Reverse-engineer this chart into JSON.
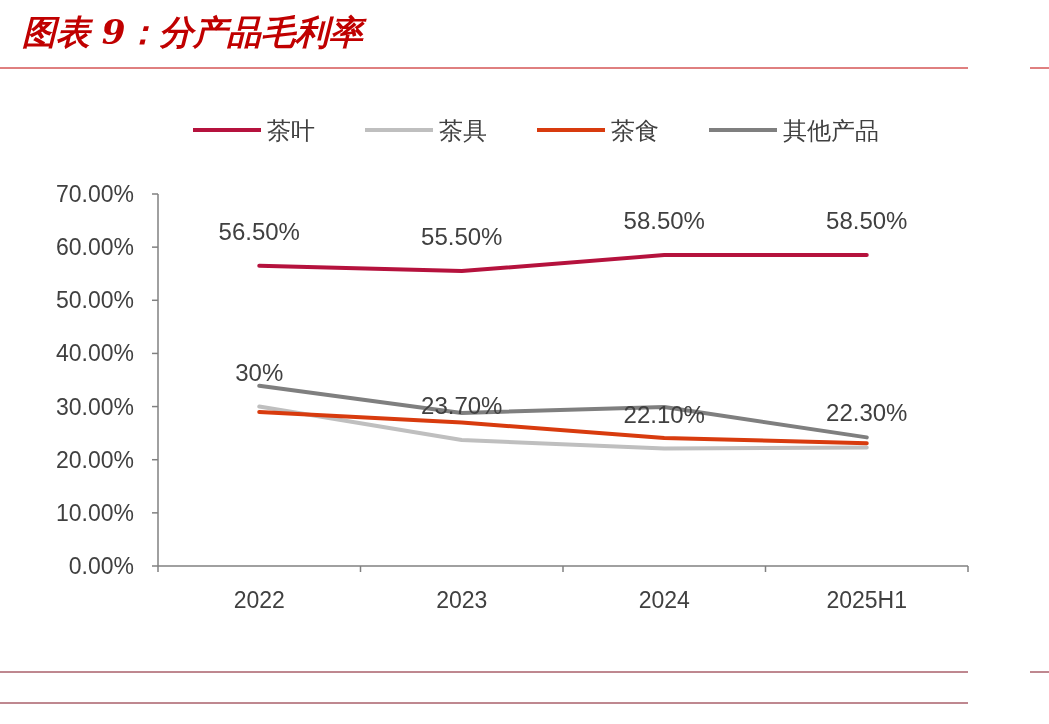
{
  "chart_data": {
    "type": "line",
    "title": "图表 9：分产品毛利率",
    "categories": [
      "2022",
      "2023",
      "2024",
      "2025H1"
    ],
    "series": [
      {
        "name": "茶叶",
        "color": "#b5123d",
        "values": [
          56.5,
          55.5,
          58.5,
          58.5
        ],
        "value_labels": [
          "56.50%",
          "55.50%",
          "58.50%",
          "58.50%"
        ]
      },
      {
        "name": "茶具",
        "color": "#bfbfbf",
        "values": [
          30,
          23.7,
          22.1,
          22.3
        ],
        "value_labels": [
          "30%",
          "23.70%",
          "22.10%",
          "22.30%"
        ]
      },
      {
        "name": "茶食",
        "color": "#d83b0e",
        "values": [
          29.0,
          27.0,
          24.1,
          23.1
        ]
      },
      {
        "name": "其他产品",
        "color": "#7f7f7f",
        "values": [
          33.9,
          28.8,
          29.9,
          24.2
        ]
      }
    ],
    "ylim": [
      0,
      70
    ],
    "yticks": [
      {
        "value": 0,
        "label": "0.00%"
      },
      {
        "value": 10,
        "label": "10.00%"
      },
      {
        "value": 20,
        "label": "20.00%"
      },
      {
        "value": 30,
        "label": "30.00%"
      },
      {
        "value": 40,
        "label": "40.00%"
      },
      {
        "value": 50,
        "label": "50.00%"
      },
      {
        "value": 60,
        "label": "60.00%"
      },
      {
        "value": 70,
        "label": "70.00%"
      }
    ],
    "grid": false,
    "legend": "top",
    "marker": "none",
    "line_style": "solid"
  }
}
